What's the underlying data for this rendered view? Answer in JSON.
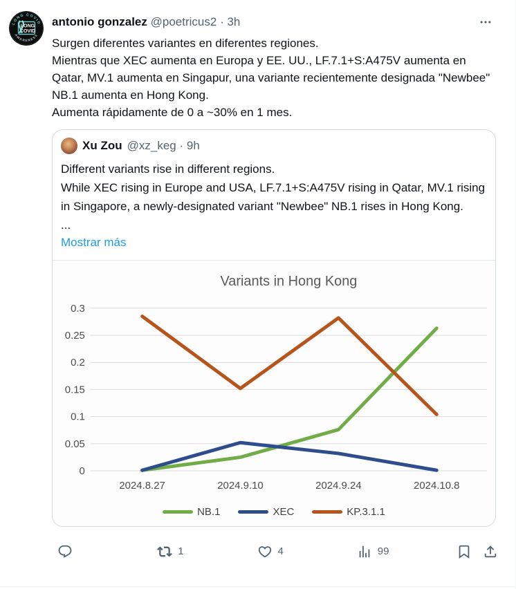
{
  "colors": {
    "accent_link": "#1d9bf0",
    "text_primary": "#0f1419",
    "text_secondary": "#536471",
    "card_border": "#cfd9de",
    "gridline": "#d9d9d9",
    "chart_text": "#4a4a4a",
    "chart_title": "#595959",
    "avatar_badge_teal": "#6fd0cb"
  },
  "icons": {
    "reply": "speech-bubble",
    "repost": "retweet-arrows",
    "like": "heart-outline",
    "views": "bar-chart",
    "bookmark": "bookmark-outline",
    "share": "arrow-up-from-tray",
    "more": "three-dots"
  },
  "tweet": {
    "author": "antonio gonzalez",
    "handle": "@poetricus2",
    "separator": "·",
    "time": "3h",
    "avatar_badge": {
      "arc_top": "LONG COVID",
      "line1": "LONG",
      "line2": "COVID",
      "arc_bottom": "AWARENESS"
    },
    "lines": [
      "Surgen diferentes variantes en diferentes regiones.",
      "Mientras que XEC aumenta en Europa y EE. UU., LF.7.1+S:A475V aumenta en Qatar, MV.1 aumenta en Singapur, una variante recientemente designada \"Newbee\" NB.1 aumenta en Hong Kong.",
      "Aumenta rápidamente de 0 a ~30% en  1 mes."
    ]
  },
  "quote": {
    "author": "Xu Zou",
    "handle": "@xz_keg",
    "separator": "·",
    "time": "9h",
    "lines": [
      "Different variants rise in different regions.",
      "While XEC rising in Europe and USA, LF.7.1+S:A475V rising in Qatar, MV.1 rising in Singapore, a newly-designated variant \"Newbee\" NB.1 rises in Hong Kong.",
      "..."
    ],
    "show_more": "Mostrar más"
  },
  "chart_data": {
    "type": "line",
    "title": "Variants in Hong Kong",
    "categories": [
      "2024.8.27",
      "2024.9.10",
      "2024.9.24",
      "2024.10.8"
    ],
    "series": [
      {
        "name": "NB.1",
        "color": "#70AD47",
        "values": [
          0.001,
          0.025,
          0.076,
          0.263
        ]
      },
      {
        "name": "XEC",
        "color": "#2E4D8C",
        "values": [
          0.001,
          0.052,
          0.032,
          0.001
        ]
      },
      {
        "name": "KP.3.1.1",
        "color": "#B5551B",
        "values": [
          0.285,
          0.152,
          0.282,
          0.104
        ]
      }
    ],
    "xlabel": "",
    "ylabel": "",
    "ylim": [
      0,
      0.3
    ],
    "yticks": [
      0,
      0.05,
      0.1,
      0.15,
      0.2,
      0.25,
      0.3
    ],
    "grid": true,
    "legend_position": "bottom"
  },
  "actions": {
    "reply_count": "",
    "repost_count": "1",
    "like_count": "4",
    "view_count": "99"
  }
}
